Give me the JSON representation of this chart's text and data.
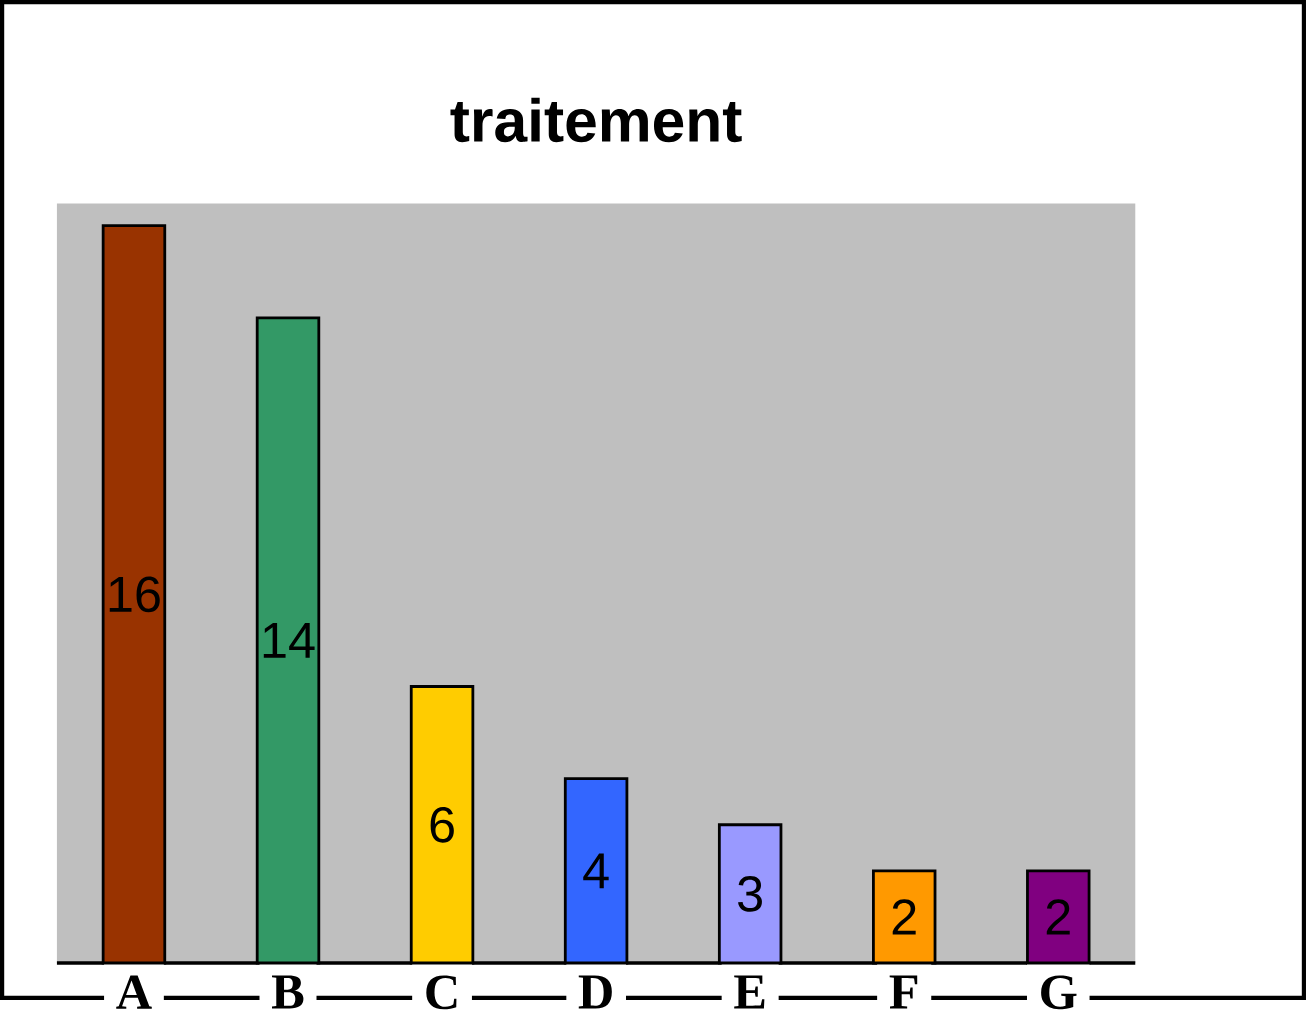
{
  "chart_data": {
    "type": "bar",
    "title": "traitement",
    "categories": [
      "A",
      "B",
      "C",
      "D",
      "E",
      "F",
      "G"
    ],
    "values": [
      16,
      14,
      6,
      4,
      3,
      2,
      2
    ],
    "colors": [
      "#993300",
      "#339966",
      "#ffcc00",
      "#3366ff",
      "#9999ff",
      "#ff9900",
      "#800080"
    ],
    "data_labels": true
  }
}
